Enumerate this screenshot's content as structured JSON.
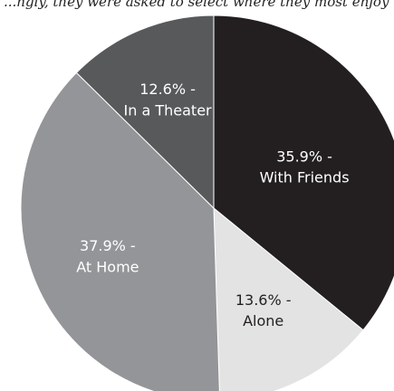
{
  "caption": "...ngly, they were asked to select where they most enjoy watching movies...",
  "chart_data": {
    "type": "pie",
    "title": "",
    "slices": [
      {
        "label_line1": "35.9% -",
        "label_line2": "With Friends",
        "value": 35.9,
        "color": "#231f20",
        "text_color": "#ffffff"
      },
      {
        "label_line1": "13.6% -",
        "label_line2": "Alone",
        "value": 13.6,
        "color": "#e3e3e4",
        "text_color": "#231f20"
      },
      {
        "label_line1": "37.9% -",
        "label_line2": "At Home",
        "value": 37.9,
        "color": "#939598",
        "text_color": "#ffffff"
      },
      {
        "label_line1": "12.6% -",
        "label_line2": "In a Theater",
        "value": 12.6,
        "color": "#58595b",
        "text_color": "#ffffff"
      }
    ],
    "start_angle": "12 o'clock",
    "direction": "clockwise",
    "legend": "none"
  }
}
